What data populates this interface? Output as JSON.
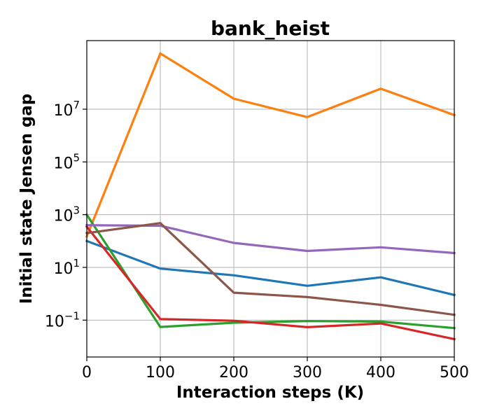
{
  "chart_data": {
    "type": "line",
    "title": "bank_heist",
    "xlabel": "Interaction steps (K)",
    "ylabel": "Initial state Jensen gap",
    "x": [
      0,
      100,
      200,
      300,
      400,
      500
    ],
    "xlim": [
      0,
      500
    ],
    "ylim": [
      0.004,
      4000000000
    ],
    "yscale": "log",
    "xticks": [
      "0",
      "100",
      "200",
      "300",
      "400",
      "500"
    ],
    "yticks": [
      {
        "base": "10",
        "exp": "−1",
        "value": 0.1
      },
      {
        "base": "10",
        "exp": "1",
        "value": 10
      },
      {
        "base": "10",
        "exp": "3",
        "value": 1000
      },
      {
        "base": "10",
        "exp": "5",
        "value": 100000
      },
      {
        "base": "10",
        "exp": "7",
        "value": 10000000
      }
    ],
    "grid": true,
    "series": [
      {
        "color": "#1f77b4",
        "values": [
          100,
          9,
          5,
          2,
          4.2,
          0.9
        ]
      },
      {
        "color": "#ff7f0e",
        "values": [
          150,
          1300000000,
          25000000,
          5000000,
          60000000,
          6000000
        ]
      },
      {
        "color": "#2ca02c",
        "values": [
          1000,
          0.055,
          0.08,
          0.092,
          0.088,
          0.05
        ]
      },
      {
        "color": "#d62728",
        "values": [
          350,
          0.11,
          0.095,
          0.054,
          0.075,
          0.019
        ]
      },
      {
        "color": "#9467bd",
        "values": [
          400,
          380,
          85,
          42,
          58,
          35
        ]
      },
      {
        "color": "#8c564b",
        "values": [
          200,
          480,
          1.1,
          0.75,
          0.38,
          0.16
        ]
      }
    ]
  }
}
